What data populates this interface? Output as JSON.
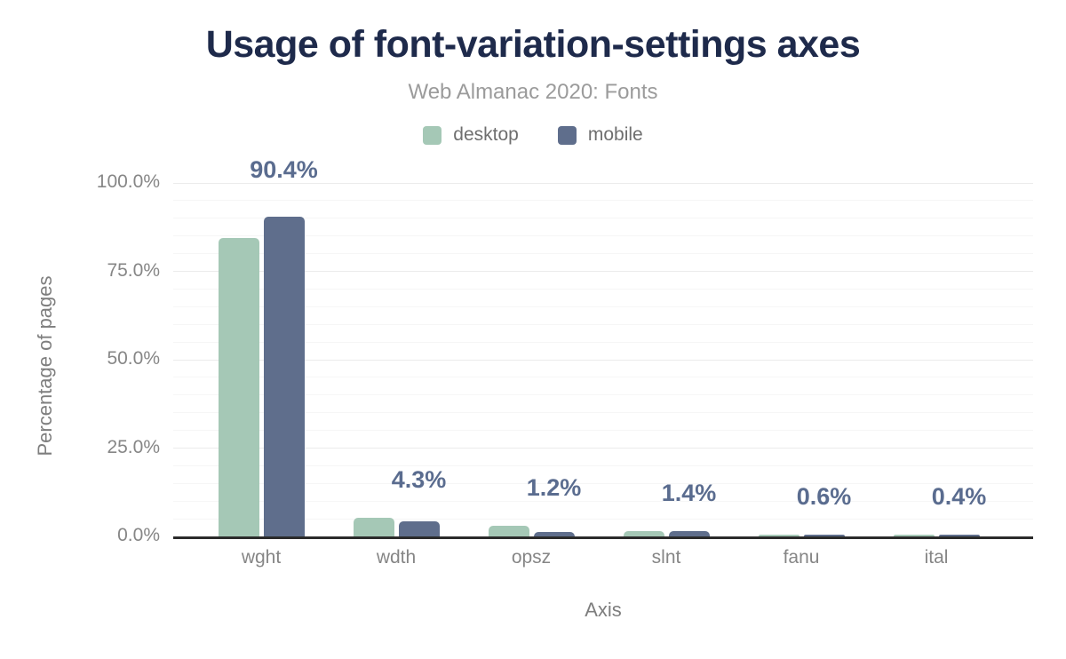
{
  "header": {
    "title": "Usage of font-variation-settings axes",
    "subtitle": "Web Almanac 2020: Fonts"
  },
  "legend": {
    "items": [
      {
        "label": "desktop",
        "color": "#a5c8b6"
      },
      {
        "label": "mobile",
        "color": "#5f6e8c"
      }
    ]
  },
  "chart_data": {
    "type": "bar",
    "title": "Usage of font-variation-settings axes",
    "subtitle": "Web Almanac 2020: Fonts",
    "categories": [
      "wght",
      "wdth",
      "opsz",
      "slnt",
      "fanu",
      "ital"
    ],
    "series": [
      {
        "name": "desktop",
        "color": "#a5c8b6",
        "values": [
          84.4,
          5.2,
          2.9,
          1.6,
          0.55,
          0.5
        ]
      },
      {
        "name": "mobile",
        "color": "#5f6e8c",
        "values": [
          90.4,
          4.3,
          1.2,
          1.4,
          0.6,
          0.4
        ]
      }
    ],
    "data_labels": [
      "90.4%",
      "4.3%",
      "1.2%",
      "1.4%",
      "0.6%",
      "0.4%"
    ],
    "data_labels_source": "mobile",
    "xlabel": "Axis",
    "ylabel": "Percentage of pages",
    "ylim": [
      0,
      100
    ],
    "yticks": [
      {
        "label": "0.0%",
        "value": 0
      },
      {
        "label": "25.0%",
        "value": 25
      },
      {
        "label": "50.0%",
        "value": 50
      },
      {
        "label": "75.0%",
        "value": 75
      },
      {
        "label": "100.0%",
        "value": 100
      }
    ],
    "grid": {
      "minor_step_pct": 5,
      "major_step_pct": 25,
      "legend_position": "top"
    }
  },
  "colors": {
    "title": "#1e2a4b",
    "subtitle": "#9b9b9b",
    "data_label": "#5a6c8f",
    "tick_label": "#868686",
    "axis_title": "#7e7e7e",
    "axis_line": "#2b2b2b",
    "grid_minor": "#f6f6f6",
    "grid_major": "#ebebeb",
    "desktop": "#a5c8b6",
    "mobile": "#5f6e8c"
  }
}
